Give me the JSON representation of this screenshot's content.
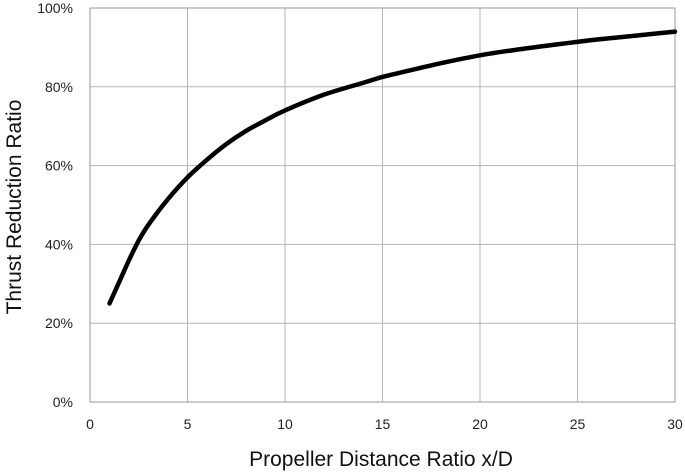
{
  "chart_data": {
    "type": "line",
    "title": "",
    "xlabel": "Propeller Distance Ratio x/D",
    "ylabel": "Thrust Reduction Ratio",
    "xlim": [
      0,
      30
    ],
    "ylim": [
      0,
      100
    ],
    "x_ticks": [
      0,
      5,
      10,
      15,
      20,
      25,
      30
    ],
    "x_tick_labels": [
      "0",
      "5",
      "10",
      "15",
      "20",
      "25",
      "30"
    ],
    "y_ticks": [
      0,
      20,
      40,
      60,
      80,
      100
    ],
    "y_tick_labels": [
      "0%",
      "20%",
      "40%",
      "60%",
      "80%",
      "100%"
    ],
    "grid": true,
    "legend": "none",
    "series": [
      {
        "color": "#000000",
        "x": [
          1,
          1.5,
          2,
          2.5,
          3,
          4,
          5,
          6,
          7,
          8,
          9,
          10,
          12,
          14,
          15,
          16,
          18,
          20,
          22,
          24,
          25,
          26,
          28,
          30
        ],
        "y": [
          25,
          30.5,
          36,
          41,
          45,
          51.5,
          57,
          61.5,
          65.5,
          68.8,
          71.5,
          74,
          78,
          81,
          82.5,
          83.7,
          86,
          88,
          89.5,
          90.8,
          91.4,
          92,
          93,
          94
        ]
      }
    ]
  }
}
